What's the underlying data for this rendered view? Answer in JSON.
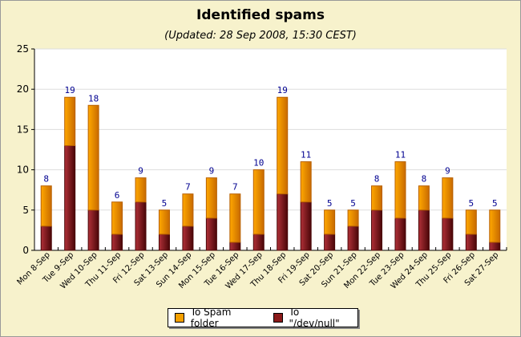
{
  "chart_data": {
    "type": "bar",
    "stacked": true,
    "title": "Identified spams",
    "subtitle": "(Updated: 28 Sep 2008, 15:30 CEST)",
    "categories": [
      "Mon 8-Sep",
      "Tue 9-Sep",
      "Wed 10-Sep",
      "Thu 11-Sep",
      "Fri 12-Sep",
      "Sat 13-Sep",
      "Sun 14-Sep",
      "Mon 15-Sep",
      "Tue 16-Sep",
      "Wed 17-Sep",
      "Thu 18-Sep",
      "Fri 19-Sep",
      "Sat 20-Sep",
      "Sun 21-Sep",
      "Mon 22-Sep",
      "Tue 23-Sep",
      "Wed 24-Sep",
      "Thu 25-Sep",
      "Fri 26-Sep",
      "Sat 27-Sep"
    ],
    "series": [
      {
        "name": "To \"/dev/null\"",
        "color": "#8b1a1a",
        "values": [
          3,
          13,
          5,
          2,
          6,
          2,
          3,
          4,
          1,
          2,
          7,
          6,
          2,
          3,
          5,
          4,
          5,
          4,
          2,
          1
        ]
      },
      {
        "name": "To Spam folder",
        "color": "#f5a000",
        "values": [
          5,
          6,
          13,
          4,
          3,
          3,
          4,
          5,
          6,
          8,
          12,
          5,
          3,
          2,
          3,
          7,
          3,
          5,
          3,
          4
        ]
      }
    ],
    "totals": [
      8,
      19,
      18,
      6,
      9,
      5,
      7,
      9,
      7,
      10,
      19,
      11,
      5,
      5,
      8,
      11,
      8,
      9,
      5,
      5
    ],
    "ylim": [
      0,
      25
    ],
    "yticks": [
      0,
      5,
      10,
      15,
      20,
      25
    ],
    "grid": true,
    "legend": "bottom",
    "legend_order": [
      "To Spam folder",
      "To \"/dev/null\""
    ]
  }
}
